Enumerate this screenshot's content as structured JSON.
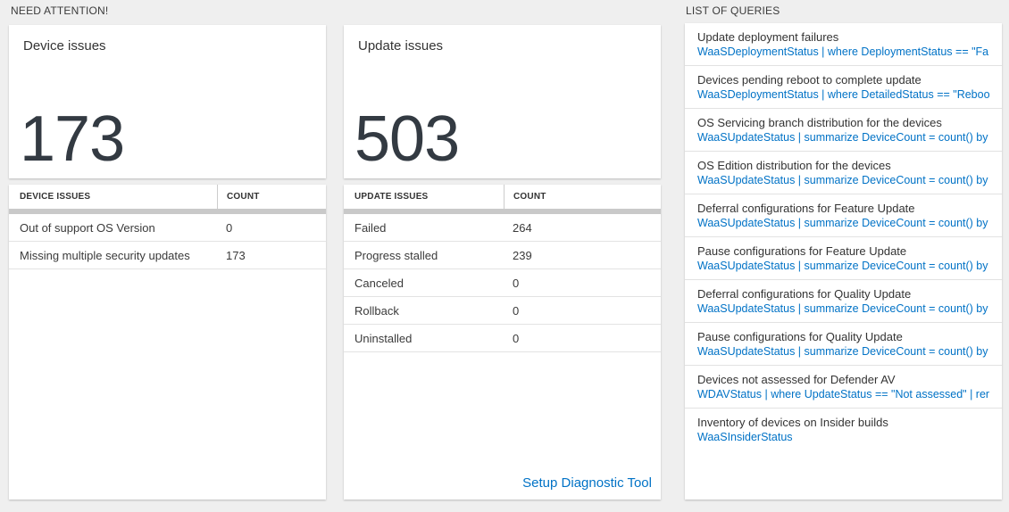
{
  "colors": {
    "accent_blue": "#0072c6",
    "big_number": "#333a42",
    "page_background": "#efefef"
  },
  "sections": {
    "need_attention": {
      "label": "NEED ATTENTION!"
    },
    "list_of_queries": {
      "label": "LIST OF QUERIES"
    }
  },
  "device_tile": {
    "title": "Device issues",
    "count": "173"
  },
  "update_tile": {
    "title": "Update issues",
    "count": "503"
  },
  "device_table": {
    "header_label": "DEVICE ISSUES",
    "header_count": "COUNT",
    "rows": [
      {
        "label": "Out of support OS Version",
        "count": "0"
      },
      {
        "label": "Missing multiple security updates",
        "count": "173"
      }
    ]
  },
  "update_table": {
    "header_label": "UPDATE ISSUES",
    "header_count": "COUNT",
    "rows": [
      {
        "label": "Failed",
        "count": "264"
      },
      {
        "label": "Progress stalled",
        "count": "239"
      },
      {
        "label": "Canceled",
        "count": "0"
      },
      {
        "label": "Rollback",
        "count": "0"
      },
      {
        "label": "Uninstalled",
        "count": "0"
      }
    ],
    "footer_link": "Setup Diagnostic Tool"
  },
  "queries": [
    {
      "title": "Update deployment failures",
      "query": "WaaSDeploymentStatus | where DeploymentStatus == \"Failed\" |..."
    },
    {
      "title": "Devices pending reboot to complete update",
      "query": "WaaSDeploymentStatus | where DetailedStatus == \"Reboot pend..."
    },
    {
      "title": "OS Servicing branch distribution for the devices",
      "query": "WaaSUpdateStatus | summarize DeviceCount = count() by OSSer..."
    },
    {
      "title": "OS Edition distribution for the devices",
      "query": "WaaSUpdateStatus | summarize DeviceCount = count() by OSEdit..."
    },
    {
      "title": "Deferral configurations for Feature Update",
      "query": "WaaSUpdateStatus | summarize DeviceCount = count() by Featur..."
    },
    {
      "title": "Pause configurations for Feature Update",
      "query": "WaaSUpdateStatus | summarize DeviceCount = count() by Featur..."
    },
    {
      "title": "Deferral configurations for Quality Update",
      "query": "WaaSUpdateStatus | summarize DeviceCount = count() by Qualit..."
    },
    {
      "title": "Pause configurations for Quality Update",
      "query": "WaaSUpdateStatus | summarize DeviceCount = count() by Qualit..."
    },
    {
      "title": "Devices not assessed for Defender AV",
      "query": "WDAVStatus | where UpdateStatus == \"Not assessed\" | render ta..."
    },
    {
      "title": "Inventory of devices on Insider builds",
      "query": "WaaSInsiderStatus"
    }
  ]
}
